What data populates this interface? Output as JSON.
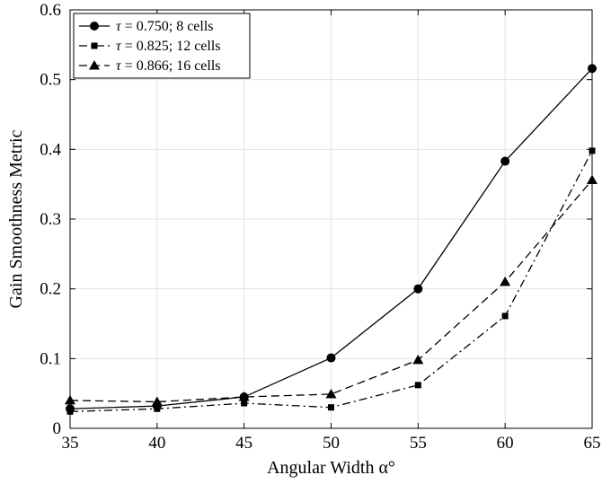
{
  "chart_data": {
    "type": "line",
    "title": "",
    "xlabel": "Angular Width α°",
    "ylabel": "Gain Smoothness Metric",
    "x": [
      35,
      40,
      45,
      50,
      55,
      60,
      65
    ],
    "xlim": [
      35,
      65
    ],
    "ylim": [
      0,
      0.6
    ],
    "xticks": [
      "35",
      "40",
      "45",
      "50",
      "55",
      "60",
      "65"
    ],
    "yticks": [
      "0",
      "0.1",
      "0.2",
      "0.3",
      "0.4",
      "0.5",
      "0.6"
    ],
    "grid": true,
    "legend_position": "top-left",
    "series": [
      {
        "name": "τ = 0.750; 8 cells",
        "name_symbol": "τ",
        "name_rest": " = 0.750; 8 cells",
        "line_style": "solid",
        "marker": "circle",
        "color": "#000000",
        "values": [
          0.028,
          0.032,
          0.045,
          0.101,
          0.2,
          0.383,
          0.516
        ]
      },
      {
        "name": "τ = 0.825; 12 cells",
        "name_symbol": "τ",
        "name_rest": " = 0.825; 12 cells",
        "line_style": "dashdot",
        "marker": "square",
        "color": "#000000",
        "values": [
          0.024,
          0.028,
          0.036,
          0.03,
          0.062,
          0.161,
          0.398
        ]
      },
      {
        "name": "τ = 0.866; 16 cells",
        "name_symbol": "τ",
        "name_rest": " = 0.866; 16 cells",
        "line_style": "dashed",
        "marker": "triangle",
        "color": "#000000",
        "values": [
          0.04,
          0.038,
          0.045,
          0.049,
          0.098,
          0.21,
          0.356
        ]
      }
    ]
  }
}
